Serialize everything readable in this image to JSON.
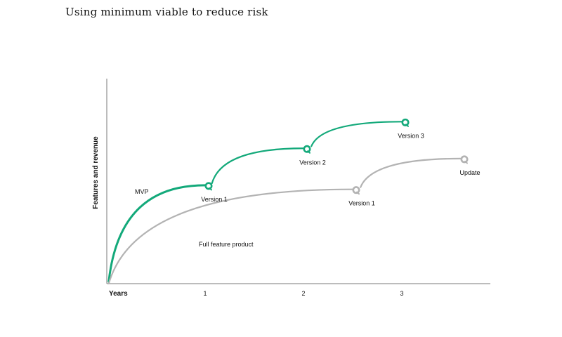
{
  "chart_data": {
    "type": "line",
    "title": "Using minimum viable to reduce risk",
    "xlabel": "Years",
    "ylabel": "Features and revenue",
    "x_ticks": [
      "1",
      "2",
      "3"
    ],
    "xlim": [
      0,
      3.9
    ],
    "ylim": [
      0,
      10
    ],
    "y_ticks_shown": false,
    "grid": false,
    "legend": "none",
    "colors": {
      "mvp": "#13a97a",
      "full": "#b3b3b3",
      "axis": "#7a7a7a"
    },
    "series": [
      {
        "key": "mvp",
        "segments": [
          {
            "x0": 0.02,
            "y0": 0.1,
            "x1": 1.0,
            "y1": 4.8,
            "end_label": "Version 1",
            "start_label": "MVP"
          },
          {
            "x0": 1.07,
            "y0": 4.9,
            "x1": 2.0,
            "y1": 6.6,
            "end_label": "Version 2"
          },
          {
            "x0": 2.08,
            "y0": 6.7,
            "x1": 3.0,
            "y1": 7.9,
            "end_label": "Version 3"
          }
        ]
      },
      {
        "key": "full",
        "segments": [
          {
            "x0": 0.02,
            "y0": 0.0,
            "x1": 2.5,
            "y1": 4.6,
            "end_label": "Version 1",
            "start_label": "Full feature product"
          },
          {
            "x0": 2.58,
            "y0": 4.7,
            "x1": 3.6,
            "y1": 6.1,
            "end_label": "Update"
          }
        ]
      }
    ]
  }
}
